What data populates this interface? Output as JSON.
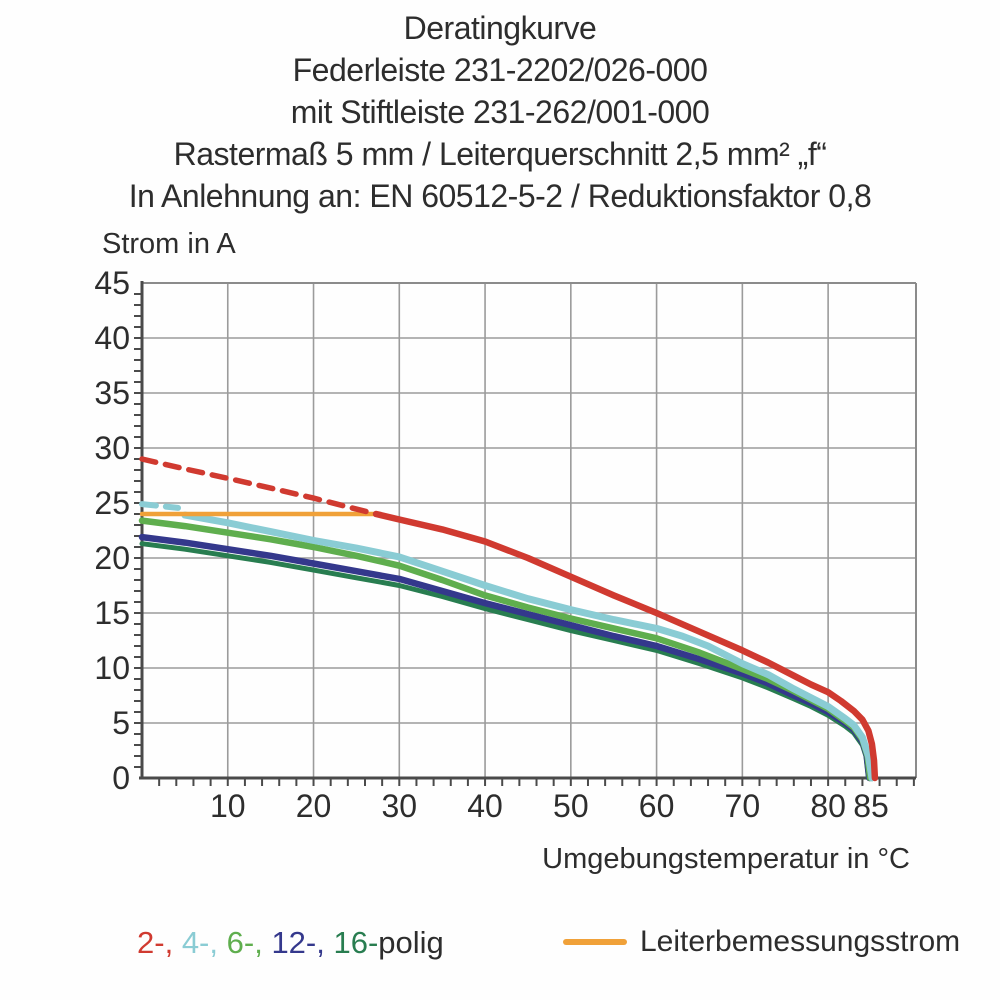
{
  "title_lines": [
    "Deratingkurve",
    "Federleiste 231-2202/026-000",
    "mit Stiftleiste 231-262/001-000",
    "Rastermaß 5 mm / Leiterquerschnitt 2,5 mm² „f“",
    "In Anlehnung an: EN 60512-5-2 / Reduktionsfaktor 0,8"
  ],
  "chart_data": {
    "type": "line",
    "title": "Deratingkurve",
    "xlabel": "Umgebungstemperatur in °C",
    "ylabel": "Strom in A",
    "xlim": [
      0,
      90.3
    ],
    "ylim": [
      0,
      45
    ],
    "grid": true,
    "legend_position": "bottom",
    "x_gridlines": [
      10,
      20,
      30,
      40,
      50,
      60,
      70,
      80
    ],
    "y_gridlines": [
      5,
      10,
      15,
      20,
      25,
      30,
      35,
      40
    ],
    "x_tick_labels": [
      10,
      20,
      30,
      40,
      50,
      60,
      70,
      80,
      85
    ],
    "y_tick_labels": [
      0,
      5,
      10,
      15,
      20,
      25,
      30,
      35,
      40,
      45
    ],
    "x_minor_tick_step": 2,
    "y_minor_tick_step": 1,
    "colors": {
      "red_2polig": "#d03a30",
      "cyan_4polig": "#8accd4",
      "green_6polig": "#5fae4e",
      "navy_12polig": "#34388c",
      "darkgreen_16polig": "#287d50",
      "orange_rated": "#f0a139",
      "grid": "#9b9b9b",
      "axis": "#4a4a4a",
      "border": "#8b8b8b"
    },
    "series": [
      {
        "name": "16-polig",
        "color": "#287d50",
        "width": 5,
        "dashed": false,
        "points": [
          [
            0,
            21.3
          ],
          [
            5,
            20.8
          ],
          [
            10,
            20.2
          ],
          [
            15,
            19.6
          ],
          [
            20,
            18.9
          ],
          [
            25,
            18.2
          ],
          [
            30,
            17.5
          ],
          [
            35,
            16.5
          ],
          [
            40,
            15.4
          ],
          [
            45,
            14.4
          ],
          [
            50,
            13.4
          ],
          [
            55,
            12.5
          ],
          [
            60,
            11.6
          ],
          [
            65,
            10.4
          ],
          [
            70,
            9.1
          ],
          [
            73,
            8.2
          ],
          [
            76,
            7.2
          ],
          [
            78,
            6.5
          ],
          [
            80,
            5.7
          ],
          [
            82,
            4.7
          ],
          [
            83,
            4.1
          ],
          [
            84,
            3.0
          ],
          [
            84.4,
            2.0
          ],
          [
            84.7,
            0
          ]
        ]
      },
      {
        "name": "12-polig",
        "color": "#34388c",
        "width": 6.5,
        "dashed": false,
        "points": [
          [
            0,
            21.9
          ],
          [
            5,
            21.4
          ],
          [
            10,
            20.8
          ],
          [
            15,
            20.2
          ],
          [
            20,
            19.5
          ],
          [
            25,
            18.8
          ],
          [
            30,
            18.1
          ],
          [
            35,
            17.0
          ],
          [
            40,
            15.9
          ],
          [
            45,
            14.9
          ],
          [
            50,
            13.9
          ],
          [
            55,
            12.9
          ],
          [
            60,
            12.0
          ],
          [
            65,
            10.8
          ],
          [
            70,
            9.5
          ],
          [
            73,
            8.6
          ],
          [
            76,
            7.5
          ],
          [
            78,
            6.8
          ],
          [
            80,
            6.0
          ],
          [
            82,
            5.0
          ],
          [
            83,
            4.4
          ],
          [
            84,
            3.3
          ],
          [
            84.5,
            2.1
          ],
          [
            84.8,
            0
          ]
        ]
      },
      {
        "name": "6-polig",
        "color": "#5fae4e",
        "width": 6.5,
        "dashed": false,
        "points": [
          [
            0,
            23.4
          ],
          [
            5,
            22.9
          ],
          [
            10,
            22.3
          ],
          [
            15,
            21.7
          ],
          [
            20,
            21.0
          ],
          [
            25,
            20.2
          ],
          [
            30,
            19.3
          ],
          [
            35,
            18.0
          ],
          [
            40,
            16.6
          ],
          [
            45,
            15.5
          ],
          [
            50,
            14.5
          ],
          [
            55,
            13.6
          ],
          [
            60,
            12.7
          ],
          [
            65,
            11.4
          ],
          [
            70,
            9.9
          ],
          [
            73,
            9.0
          ],
          [
            76,
            7.9
          ],
          [
            78,
            7.1
          ],
          [
            80,
            6.3
          ],
          [
            82,
            5.2
          ],
          [
            83,
            4.6
          ],
          [
            84,
            3.5
          ],
          [
            84.6,
            2.0
          ],
          [
            84.9,
            0
          ]
        ]
      },
      {
        "name": "4-polig (gestrichelt)",
        "color": "#8accd4",
        "width": 6,
        "dashed": true,
        "points": [
          [
            0,
            24.9
          ],
          [
            4.2,
            24.55
          ]
        ]
      },
      {
        "name": "4-polig",
        "color": "#8accd4",
        "width": 7,
        "dashed": false,
        "points": [
          [
            5,
            23.9
          ],
          [
            10,
            23.2
          ],
          [
            15,
            22.4
          ],
          [
            20,
            21.6
          ],
          [
            25,
            20.9
          ],
          [
            30,
            20.1
          ],
          [
            35,
            18.8
          ],
          [
            40,
            17.5
          ],
          [
            45,
            16.3
          ],
          [
            50,
            15.3
          ],
          [
            55,
            14.4
          ],
          [
            60,
            13.6
          ],
          [
            63,
            12.9
          ],
          [
            66,
            12.0
          ],
          [
            70,
            10.4
          ],
          [
            73,
            9.4
          ],
          [
            76,
            8.1
          ],
          [
            78,
            7.3
          ],
          [
            80,
            6.5
          ],
          [
            82,
            5.4
          ],
          [
            83,
            4.8
          ],
          [
            84,
            3.7
          ],
          [
            84.7,
            2.0
          ],
          [
            85.1,
            0
          ]
        ]
      },
      {
        "name": "Leiterbemessungsstrom",
        "color": "#f0a139",
        "width": 4.5,
        "dashed": false,
        "points": [
          [
            0,
            24.0
          ],
          [
            27.3,
            24.0
          ]
        ]
      },
      {
        "name": "2-polig (gestrichelt)",
        "color": "#d03a30",
        "width": 5.5,
        "dashed": true,
        "points": [
          [
            0,
            29.0
          ],
          [
            5,
            28.1
          ],
          [
            10,
            27.25
          ],
          [
            15,
            26.35
          ],
          [
            20,
            25.45
          ],
          [
            25,
            24.45
          ],
          [
            27.3,
            24.0
          ]
        ]
      },
      {
        "name": "2-polig",
        "color": "#d03a30",
        "width": 6.5,
        "dashed": false,
        "points": [
          [
            27.3,
            24.0
          ],
          [
            30,
            23.5
          ],
          [
            35,
            22.6
          ],
          [
            40,
            21.5
          ],
          [
            45,
            20.0
          ],
          [
            50,
            18.3
          ],
          [
            55,
            16.6
          ],
          [
            60,
            15.0
          ],
          [
            65,
            13.3
          ],
          [
            70,
            11.6
          ],
          [
            73,
            10.5
          ],
          [
            76,
            9.3
          ],
          [
            78,
            8.5
          ],
          [
            80,
            7.8
          ],
          [
            81.5,
            7.0
          ],
          [
            83,
            6.1
          ],
          [
            84,
            5.3
          ],
          [
            84.7,
            4.3
          ],
          [
            85.1,
            3.1
          ],
          [
            85.35,
            1.6
          ],
          [
            85.45,
            0
          ]
        ]
      }
    ]
  },
  "legend": {
    "poles": [
      {
        "label": "2-,",
        "color": "#d03a30"
      },
      {
        "label": "4-,",
        "color": "#8accd4"
      },
      {
        "label": "6-,",
        "color": "#5fae4e"
      },
      {
        "label": "12-,",
        "color": "#34388c"
      },
      {
        "label": "16-",
        "color": "#287d50"
      }
    ],
    "poles_suffix": "polig",
    "rated_current_label": "Leiterbemessungsstrom",
    "rated_current_color": "#f0a139"
  }
}
